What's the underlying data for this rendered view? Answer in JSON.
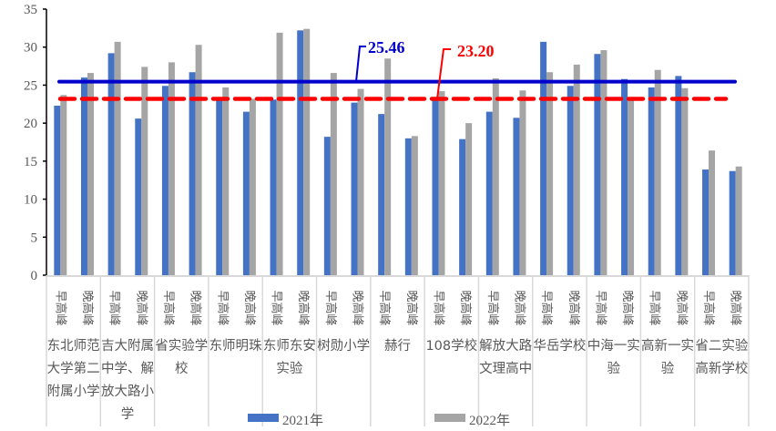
{
  "chart_data": {
    "type": "bar",
    "title": "",
    "xlabel": "",
    "ylabel": "",
    "ylim": [
      0,
      35
    ],
    "yticks": [
      0,
      5,
      10,
      15,
      20,
      25,
      30,
      35
    ],
    "grid": false,
    "legend_position": "bottom",
    "sub_categories": [
      "早高峰",
      "晚高峰"
    ],
    "groups": [
      "东北师范大学第二附属小学",
      "吉大附属中学、解放大路小学",
      "省实验学校",
      "东师明珠",
      "东师东安实验",
      "树勋小学",
      "赫行",
      "108学校",
      "解放大路文理高中",
      "华岳学校",
      "中海一实验",
      "高新一实验",
      "省二实验高新学校"
    ],
    "series": [
      {
        "name": "2021年",
        "color": "#4472C4",
        "values": [
          22.3,
          26.0,
          29.2,
          20.6,
          24.9,
          26.7,
          23.0,
          21.5,
          23.1,
          32.2,
          18.2,
          22.7,
          21.2,
          18.0,
          23.0,
          17.9,
          21.5,
          20.7,
          30.7,
          24.9,
          29.1,
          25.8,
          24.7,
          26.2,
          13.9,
          13.7
        ]
      },
      {
        "name": "2022年",
        "color": "#A5A5A5",
        "values": [
          23.7,
          26.6,
          30.7,
          27.4,
          28.0,
          30.3,
          24.7,
          23.2,
          31.9,
          32.4,
          26.6,
          24.5,
          28.5,
          18.3,
          24.2,
          20.0,
          25.9,
          24.3,
          26.7,
          27.7,
          29.6,
          23.0,
          27.0,
          24.6,
          16.4,
          14.3
        ]
      }
    ],
    "reference_lines": [
      {
        "label": "25.46",
        "value": 25.46,
        "color": "#0000CC",
        "style": "solid"
      },
      {
        "label": "23.20",
        "value": 23.2,
        "color": "#FF0000",
        "style": "dashed"
      }
    ]
  }
}
